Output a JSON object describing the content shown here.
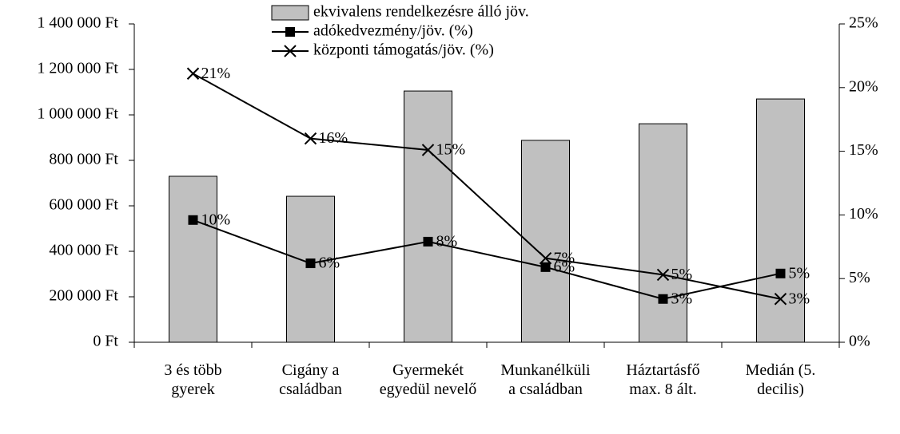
{
  "chart_data": {
    "type": "bar-line",
    "categories": [
      "3 és több gyerek",
      "Cigány a családban",
      "Gyermekét egyedül nevelő",
      "Munkanélküli a családban",
      "Háztartásfő max. 8 ált.",
      "Medián (5. decilis)"
    ],
    "series": [
      {
        "name": "ekvivalens rendelkezésre álló jöv.",
        "color": "#c0c0c0",
        "type": "bar",
        "values": [
          730000,
          642000,
          1105000,
          888000,
          961000,
          1070000
        ]
      },
      {
        "name": "adókedvezmény/jöv. (%)",
        "color": "#000000",
        "type": "line",
        "marker": "square",
        "axis": "y2",
        "values": [
          9.6,
          6.2,
          7.9,
          5.9,
          3.4,
          5.4
        ],
        "value_labels": [
          "10%",
          "6%",
          "8%",
          "6%",
          "3%",
          "5%"
        ]
      },
      {
        "name": "központi támogatás/jöv. (%)",
        "color": "#000000",
        "type": "line",
        "marker": "x",
        "axis": "y2",
        "values": [
          21.1,
          16.0,
          15.1,
          6.6,
          5.3,
          3.4
        ],
        "value_labels": [
          "21%",
          "16%",
          "15%",
          "7%",
          "5%",
          "3%"
        ]
      }
    ],
    "ylim": [
      0,
      1400000
    ],
    "yticks": [
      {
        "value": 0,
        "label": "0 Ft"
      },
      {
        "value": 200000,
        "label": "200 000 Ft"
      },
      {
        "value": 400000,
        "label": "400 000 Ft"
      },
      {
        "value": 600000,
        "label": "600 000 Ft"
      },
      {
        "value": 800000,
        "label": "800 000 Ft"
      },
      {
        "value": 1000000,
        "label": "1 000 000 Ft"
      },
      {
        "value": 1200000,
        "label": "1 200 000 Ft"
      },
      {
        "value": 1400000,
        "label": "1 400 000 Ft"
      }
    ],
    "y2lim": [
      0,
      25
    ],
    "y2ticks": [
      {
        "value": 0,
        "label": "0%"
      },
      {
        "value": 5,
        "label": "5%"
      },
      {
        "value": 10,
        "label": "10%"
      },
      {
        "value": 15,
        "label": "15%"
      },
      {
        "value": 20,
        "label": "20%"
      },
      {
        "value": 25,
        "label": "25%"
      }
    ],
    "legend": "top"
  }
}
